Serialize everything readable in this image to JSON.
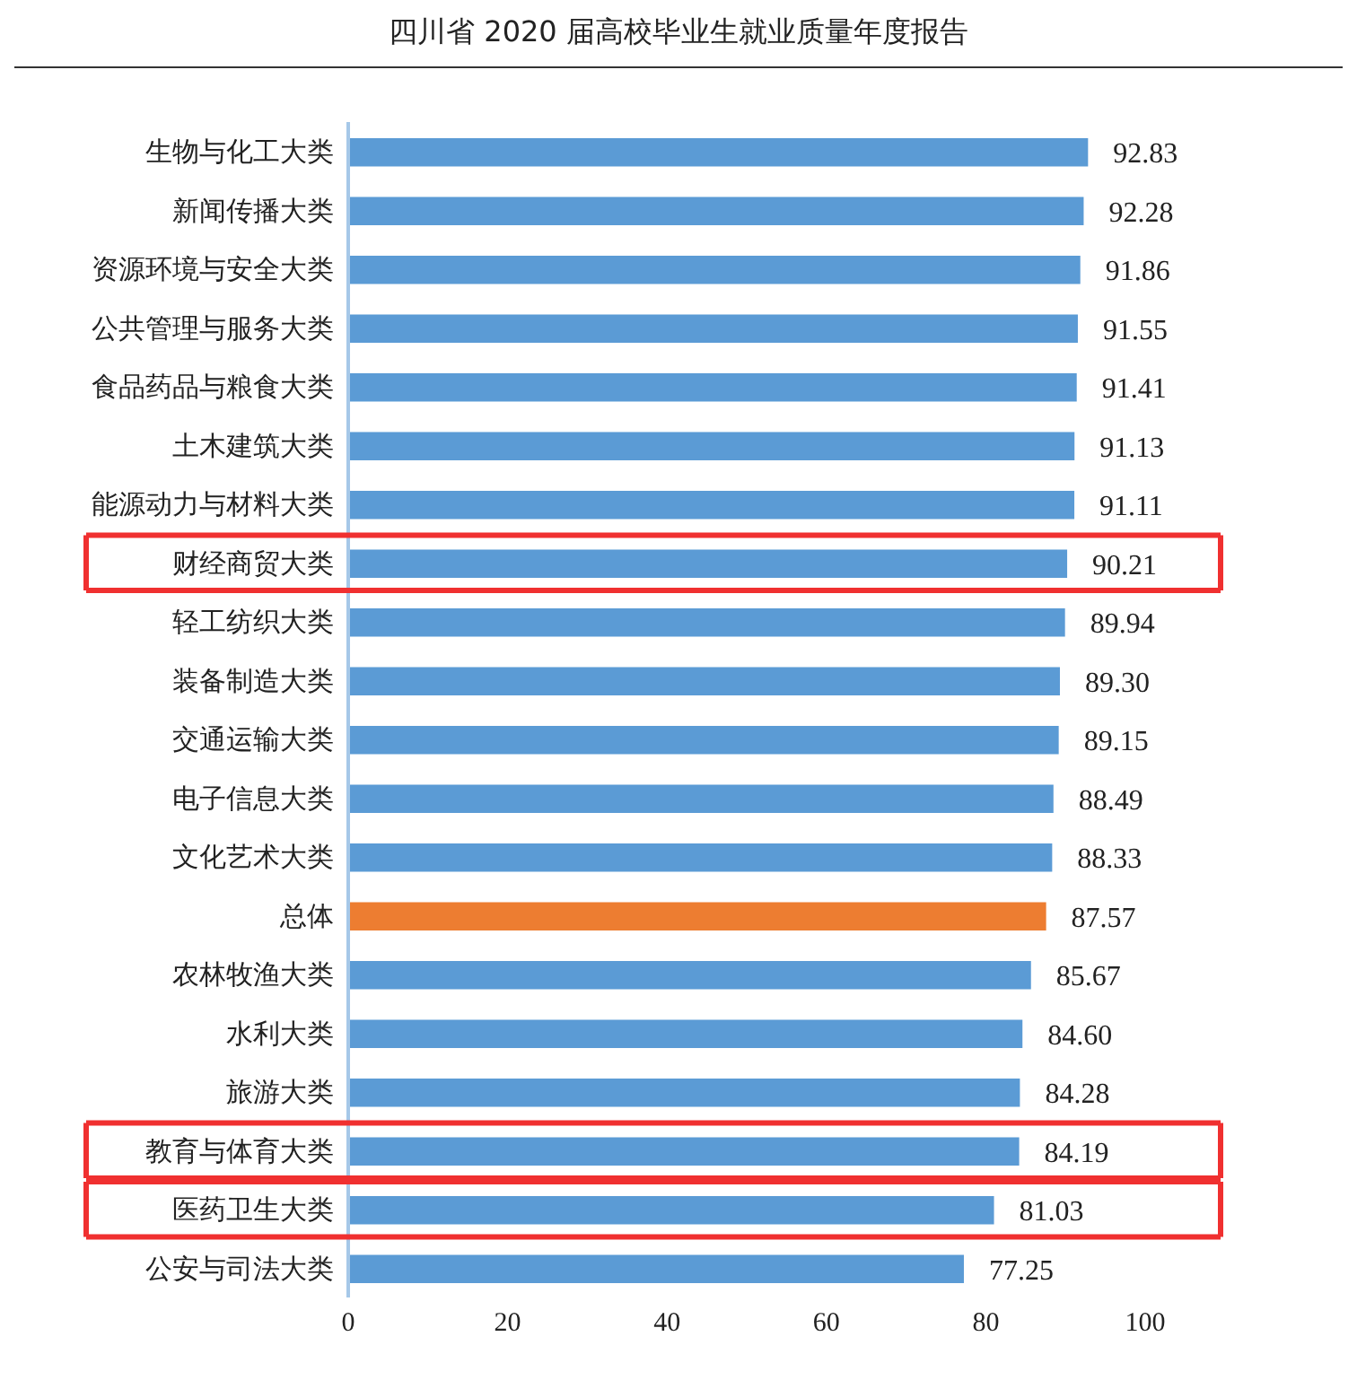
{
  "chart_data": {
    "type": "bar",
    "orientation": "horizontal",
    "title": "四川省 2020 届高校毕业生就业质量年度报告",
    "categories": [
      "生物与化工大类",
      "新闻传播大类",
      "资源环境与安全大类",
      "公共管理与服务大类",
      "食品药品与粮食大类",
      "土木建筑大类",
      "能源动力与材料大类",
      "财经商贸大类",
      "轻工纺织大类",
      "装备制造大类",
      "交通运输大类",
      "电子信息大类",
      "文化艺术大类",
      "总体",
      "农林牧渔大类",
      "水利大类",
      "旅游大类",
      "教育与体育大类",
      "医药卫生大类",
      "公安与司法大类"
    ],
    "values": [
      92.83,
      92.28,
      91.86,
      91.55,
      91.41,
      91.13,
      91.11,
      90.21,
      89.94,
      89.3,
      89.15,
      88.49,
      88.33,
      87.57,
      85.67,
      84.6,
      84.28,
      84.19,
      81.03,
      77.25
    ],
    "value_labels": [
      "92.83",
      "92.28",
      "91.86",
      "91.55",
      "91.41",
      "91.13",
      "91.11",
      "90.21",
      "89.94",
      "89.30",
      "89.15",
      "88.49",
      "88.33",
      "87.57",
      "85.67",
      "84.60",
      "84.28",
      "84.19",
      "81.03",
      "77.25"
    ],
    "colors": [
      "#5b9bd5",
      "#5b9bd5",
      "#5b9bd5",
      "#5b9bd5",
      "#5b9bd5",
      "#5b9bd5",
      "#5b9bd5",
      "#5b9bd5",
      "#5b9bd5",
      "#5b9bd5",
      "#5b9bd5",
      "#5b9bd5",
      "#5b9bd5",
      "#ed7d31",
      "#5b9bd5",
      "#5b9bd5",
      "#5b9bd5",
      "#5b9bd5",
      "#5b9bd5",
      "#5b9bd5"
    ],
    "xlim": [
      0,
      100
    ],
    "xticks": [
      0,
      20,
      40,
      60,
      80,
      100
    ],
    "grid": false,
    "legend": false
  }
}
